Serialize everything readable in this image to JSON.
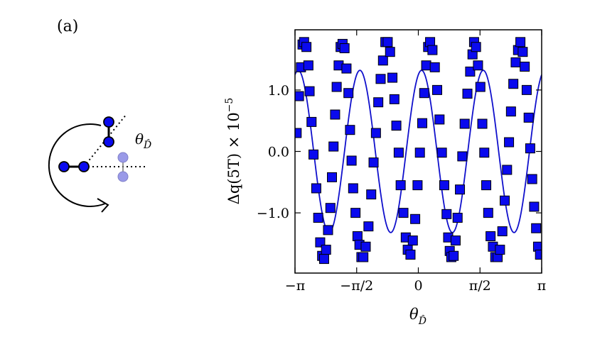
{
  "panel_label": "(a)",
  "schematic": {
    "angle_label": "θ",
    "angle_label_sub": "D̂"
  },
  "colors": {
    "marker_fill": "#0a0aee",
    "marker_edge": "#000000",
    "fit_line": "#1010cc",
    "ghost_fill": "#9a9ae8"
  },
  "chart_data": {
    "type": "scatter",
    "xlabel": "θ",
    "xlabel_sub": "D̂",
    "ylabel": "Δq(5T) × 10",
    "ylabel_exp": "−5",
    "xlim": [
      -3.14159,
      3.14159
    ],
    "ylim": [
      -1.98,
      1.98
    ],
    "x_ticks": [
      {
        "value": -3.14159,
        "label": "−π"
      },
      {
        "value": -1.5708,
        "label": "−π/2"
      },
      {
        "value": 0,
        "label": "0"
      },
      {
        "value": 1.5708,
        "label": "π/2"
      },
      {
        "value": 3.14159,
        "label": "π"
      }
    ],
    "y_ticks": [
      {
        "value": 1.0,
        "label": "1.0"
      },
      {
        "value": 0.0,
        "label": "0.0"
      },
      {
        "value": -1.0,
        "label": "−1.0"
      }
    ],
    "fit": {
      "name": "",
      "function": "A*sin(4*(x - x0))",
      "amplitude": 1.32,
      "phase_x0": -0.31
    },
    "series": [
      {
        "name": "",
        "marker": "square",
        "x": [
          -3.1,
          -3.04,
          -2.99,
          -2.95,
          -2.91,
          -2.85,
          -2.8,
          -2.77,
          -2.72,
          -2.67,
          -2.6,
          -2.55,
          -2.5,
          -2.45,
          -2.4,
          -2.35,
          -2.3,
          -2.24,
          -2.2,
          -2.16,
          -2.12,
          -2.08,
          -2.03,
          -1.98,
          -1.93,
          -1.88,
          -1.83,
          -1.78,
          -1.74,
          -1.7,
          -1.66,
          -1.6,
          -1.55,
          -1.5,
          -1.45,
          -1.4,
          -1.34,
          -1.27,
          -1.2,
          -1.14,
          -1.08,
          -1.02,
          -0.96,
          -0.9,
          -0.84,
          -0.78,
          -0.72,
          -0.66,
          -0.61,
          -0.56,
          -0.5,
          -0.45,
          -0.38,
          -0.32,
          -0.27,
          -0.2,
          -0.14,
          -0.08,
          -0.02,
          0.04,
          0.1,
          0.15,
          0.2,
          0.25,
          0.3,
          0.36,
          0.42,
          0.48,
          0.54,
          0.6,
          0.66,
          0.72,
          0.76,
          0.8,
          0.84,
          0.9,
          0.95,
          1.0,
          1.06,
          1.12,
          1.18,
          1.25,
          1.32,
          1.38,
          1.42,
          1.47,
          1.52,
          1.58,
          1.63,
          1.68,
          1.73,
          1.78,
          1.84,
          1.9,
          1.96,
          2.02,
          2.08,
          2.14,
          2.2,
          2.26,
          2.31,
          2.36,
          2.42,
          2.48,
          2.54,
          2.6,
          2.66,
          2.71,
          2.76,
          2.81,
          2.85,
          2.9,
          2.95,
          3.0,
          3.05,
          3.1
        ],
        "y": [
          0.3,
          0.9,
          1.37,
          1.74,
          1.78,
          1.7,
          1.4,
          0.98,
          0.48,
          -0.05,
          -0.6,
          -1.08,
          -1.48,
          -1.7,
          -1.75,
          -1.6,
          -1.28,
          -0.92,
          -0.42,
          0.08,
          0.6,
          1.05,
          1.4,
          1.7,
          1.75,
          1.68,
          1.35,
          0.95,
          0.35,
          -0.15,
          -0.6,
          -1.0,
          -1.38,
          -1.52,
          -1.72,
          -1.72,
          -1.55,
          -1.22,
          -0.7,
          -0.18,
          0.3,
          0.8,
          1.18,
          1.48,
          1.78,
          1.78,
          1.62,
          1.2,
          0.85,
          0.42,
          -0.02,
          -0.55,
          -1.0,
          -1.4,
          -1.6,
          -1.68,
          -1.45,
          -1.1,
          -0.55,
          -0.02,
          0.46,
          0.95,
          1.4,
          1.7,
          1.78,
          1.65,
          1.37,
          1.0,
          0.52,
          -0.02,
          -0.55,
          -1.02,
          -1.4,
          -1.62,
          -1.72,
          -1.7,
          -1.45,
          -1.08,
          -0.62,
          -0.08,
          0.45,
          0.94,
          1.3,
          1.58,
          1.78,
          1.7,
          1.4,
          1.05,
          0.45,
          -0.02,
          -0.55,
          -1.0,
          -1.38,
          -1.55,
          -1.72,
          -1.72,
          -1.6,
          -1.3,
          -0.8,
          -0.3,
          0.15,
          0.65,
          1.1,
          1.45,
          1.65,
          1.78,
          1.62,
          1.38,
          1.0,
          0.55,
          0.05,
          -0.45,
          -0.9,
          -1.25,
          -1.55,
          -1.68
        ]
      }
    ]
  }
}
